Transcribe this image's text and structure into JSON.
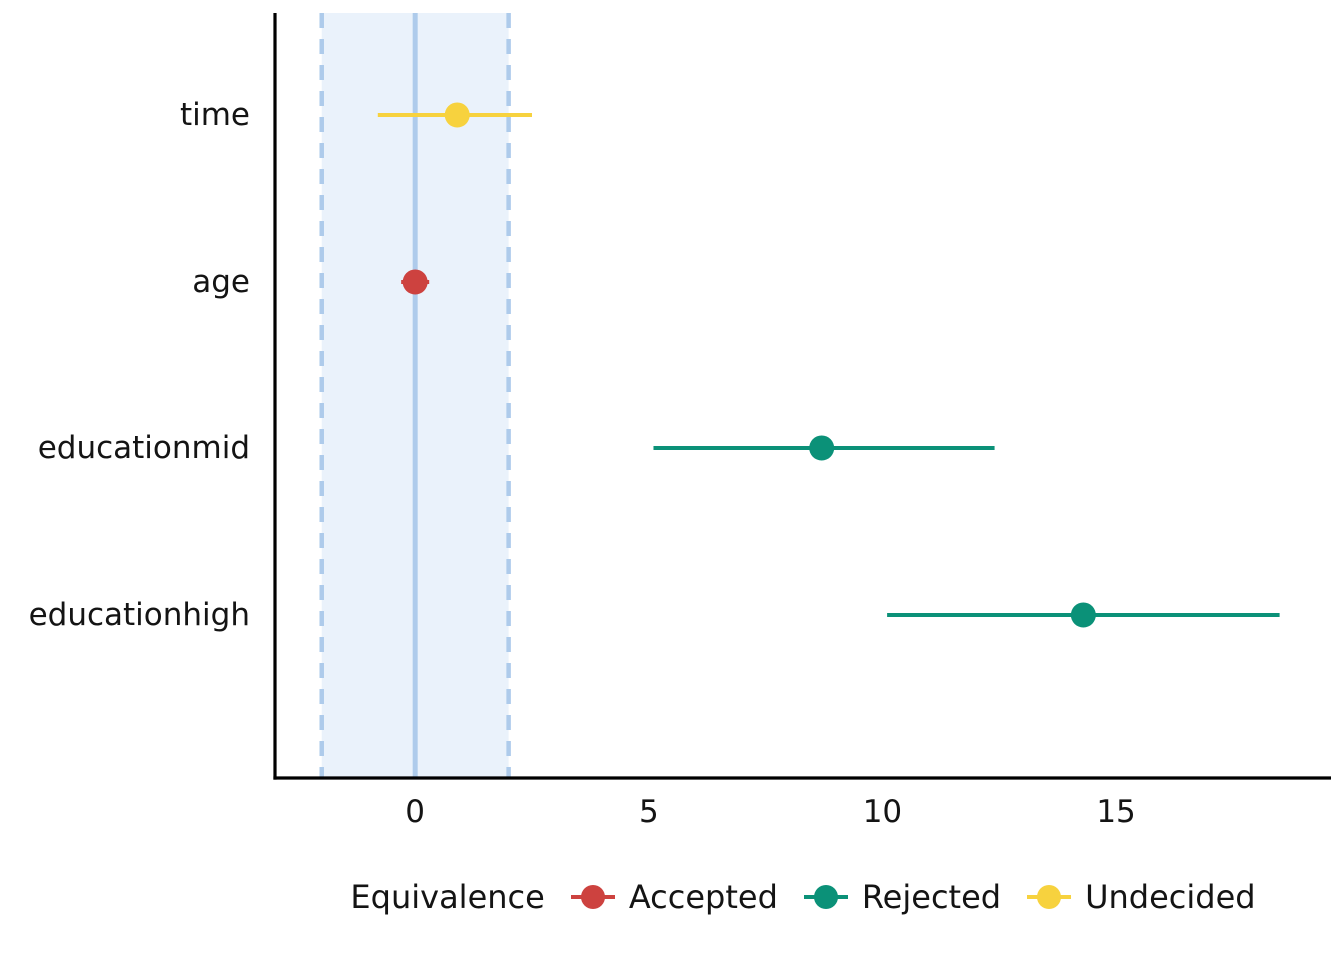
{
  "chart_data": {
    "type": "scatter",
    "subtype": "horizontal_pointrange_equivalence_test",
    "categories": [
      "time",
      "age",
      "educationmid",
      "educationhigh"
    ],
    "points": [
      {
        "label": "time",
        "estimate": 0.9,
        "ci_low": -0.8,
        "ci_high": 2.5,
        "group": "Undecided"
      },
      {
        "label": "age",
        "estimate": 0.0,
        "ci_low": -0.3,
        "ci_high": 0.3,
        "group": "Accepted"
      },
      {
        "label": "educationmid",
        "estimate": 8.7,
        "ci_low": 5.1,
        "ci_high": 12.4,
        "group": "Rejected"
      },
      {
        "label": "educationhigh",
        "estimate": 14.3,
        "ci_low": 10.1,
        "ci_high": 18.5,
        "group": "Rejected"
      }
    ],
    "rope": {
      "low": -2,
      "high": 2,
      "center": 0
    },
    "x_ticks": [
      0,
      5,
      10,
      15
    ],
    "x_range": [
      -3.0,
      19.6
    ],
    "grid": false,
    "xlabel": "",
    "ylabel": "",
    "legend": {
      "title": "Equivalence",
      "position": "bottom",
      "items": [
        {
          "label": "Accepted",
          "color": "#CD423F"
        },
        {
          "label": "Rejected",
          "color": "#0B9178"
        },
        {
          "label": "Undecided",
          "color": "#F7D23E"
        }
      ]
    },
    "colors": {
      "rope_fill": "#EAF2FB",
      "rope_line": "#AECBEB",
      "axis_line": "#000000",
      "text": "#141414"
    }
  }
}
